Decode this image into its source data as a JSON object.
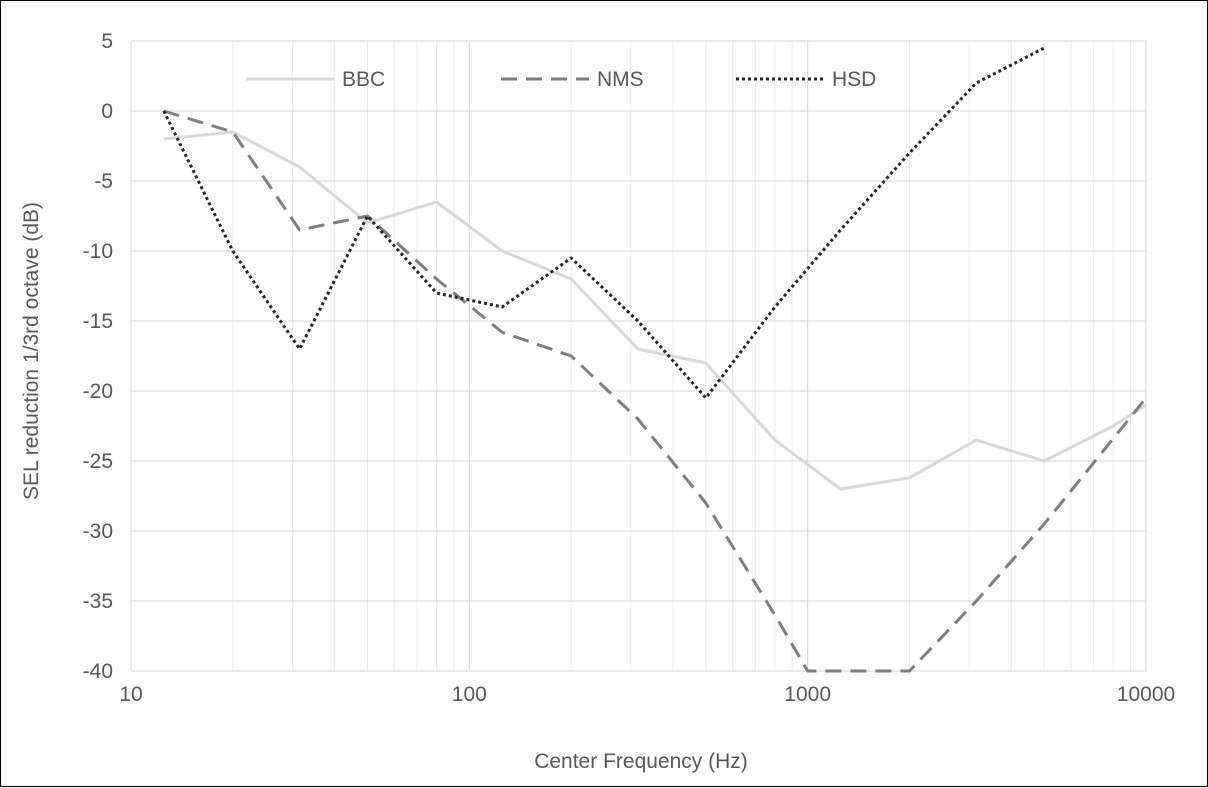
{
  "chart_data": {
    "type": "line",
    "title": "",
    "xlabel": "Center Frequency (Hz)",
    "ylabel": "SEL reduction 1/3rd octave (dB)",
    "x_scale": "log",
    "xlim": [
      10,
      10000
    ],
    "ylim": [
      -40,
      5
    ],
    "x_ticks": [
      "10",
      "100",
      "1000",
      "10000"
    ],
    "x_tick_values": [
      10,
      100,
      1000,
      10000
    ],
    "y_ticks": [
      "5",
      "0",
      "-5",
      "-10",
      "-15",
      "-20",
      "-25",
      "-30",
      "-35",
      "-40"
    ],
    "y_tick_values": [
      5,
      0,
      -5,
      -10,
      -15,
      -20,
      -25,
      -30,
      -35,
      -40
    ],
    "grid": true,
    "legend_position": "top",
    "series": [
      {
        "name": "BBC",
        "color": "#d9d9d9",
        "style": "solid",
        "x": [
          12.5,
          20,
          31.5,
          50,
          80,
          125,
          200,
          315,
          500,
          800,
          1250,
          2000,
          3150,
          5000,
          8000,
          10000
        ],
        "y": [
          -2,
          -1.5,
          -4,
          -8,
          -6.5,
          -10,
          -12,
          -17,
          -18,
          -23.5,
          -27,
          -26.2,
          -23.5,
          -25,
          -22.5,
          -21
        ]
      },
      {
        "name": "NMS",
        "color": "#7f7f7f",
        "style": "dashed",
        "x": [
          12.5,
          20,
          31.5,
          50,
          80,
          125,
          200,
          315,
          500,
          800,
          1000,
          2000,
          3150,
          5000,
          10000
        ],
        "y": [
          0,
          -1.5,
          -8.5,
          -7.5,
          -12,
          -15.8,
          -17.5,
          -22,
          -28,
          -36,
          -40,
          -40,
          -35,
          -29.5,
          -20.5
        ]
      },
      {
        "name": "HSD",
        "color": "#262626",
        "style": "dotted",
        "x": [
          12.5,
          20,
          31.5,
          50,
          80,
          125,
          200,
          315,
          500,
          800,
          1250,
          2000,
          3150,
          5000
        ],
        "y": [
          0,
          -10,
          -17,
          -7.5,
          -13,
          -14,
          -10.5,
          -15,
          -20.5,
          -14,
          -8.5,
          -3,
          2,
          4.5
        ]
      }
    ]
  }
}
